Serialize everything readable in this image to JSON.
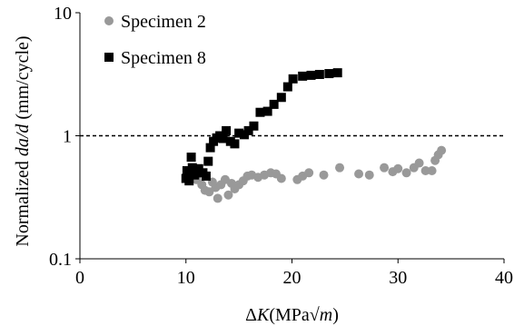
{
  "chart_data": {
    "type": "scatter",
    "xlabel": {
      "prefix": "ΔK",
      "suffix": "(MPa√m)"
    },
    "ylabel": {
      "prefix": "Normalized ",
      "italic": "da/d",
      "suffix": " (mm/cycle)"
    },
    "xlim": [
      0,
      40
    ],
    "ylim": [
      0.1,
      10
    ],
    "y_scale": "log",
    "x_ticks": [
      "0",
      "10",
      "20",
      "30",
      "40"
    ],
    "y_ticks": [
      "0.1",
      "1",
      "10"
    ],
    "reference_line": {
      "y": 1,
      "style": "dashed"
    },
    "legend_position": "top-left",
    "series": [
      {
        "name": "Specimen 2",
        "marker": "circle",
        "color": "#999999",
        "points": [
          [
            10.3,
            0.5
          ],
          [
            10.6,
            0.46
          ],
          [
            11.0,
            0.44
          ],
          [
            11.5,
            0.4
          ],
          [
            11.8,
            0.36
          ],
          [
            12.2,
            0.35
          ],
          [
            12.5,
            0.42
          ],
          [
            12.8,
            0.38
          ],
          [
            13.0,
            0.31
          ],
          [
            13.3,
            0.4
          ],
          [
            13.7,
            0.44
          ],
          [
            14.0,
            0.33
          ],
          [
            14.3,
            0.41
          ],
          [
            14.6,
            0.37
          ],
          [
            15.0,
            0.4
          ],
          [
            15.4,
            0.43
          ],
          [
            15.8,
            0.47
          ],
          [
            16.2,
            0.48
          ],
          [
            16.8,
            0.46
          ],
          [
            17.4,
            0.48
          ],
          [
            18.0,
            0.5
          ],
          [
            18.5,
            0.49
          ],
          [
            19.0,
            0.45
          ],
          [
            20.5,
            0.44
          ],
          [
            21.0,
            0.47
          ],
          [
            21.6,
            0.5
          ],
          [
            23.0,
            0.48
          ],
          [
            24.5,
            0.55
          ],
          [
            26.3,
            0.49
          ],
          [
            27.3,
            0.48
          ],
          [
            28.7,
            0.55
          ],
          [
            29.5,
            0.51
          ],
          [
            30.0,
            0.54
          ],
          [
            30.8,
            0.5
          ],
          [
            31.5,
            0.55
          ],
          [
            32.0,
            0.6
          ],
          [
            32.6,
            0.52
          ],
          [
            33.2,
            0.52
          ],
          [
            33.5,
            0.63
          ],
          [
            33.8,
            0.7
          ],
          [
            34.1,
            0.76
          ]
        ]
      },
      {
        "name": "Specimen 8",
        "marker": "square",
        "color": "#000000",
        "points": [
          [
            10.0,
            0.45
          ],
          [
            10.1,
            0.52
          ],
          [
            10.3,
            0.43
          ],
          [
            10.5,
            0.67
          ],
          [
            10.6,
            0.55
          ],
          [
            10.8,
            0.48
          ],
          [
            11.0,
            0.5
          ],
          [
            11.2,
            0.54
          ],
          [
            11.6,
            0.5
          ],
          [
            11.9,
            0.47
          ],
          [
            12.1,
            0.62
          ],
          [
            12.3,
            0.8
          ],
          [
            12.6,
            0.9
          ],
          [
            12.9,
            0.96
          ],
          [
            13.2,
            1.0
          ],
          [
            13.5,
            0.95
          ],
          [
            13.8,
            1.1
          ],
          [
            14.2,
            0.9
          ],
          [
            14.6,
            0.86
          ],
          [
            15.0,
            1.05
          ],
          [
            15.5,
            1.02
          ],
          [
            15.9,
            1.1
          ],
          [
            16.4,
            1.2
          ],
          [
            17.0,
            1.55
          ],
          [
            17.7,
            1.58
          ],
          [
            18.3,
            1.8
          ],
          [
            19.0,
            2.05
          ],
          [
            19.6,
            2.5
          ],
          [
            20.1,
            2.9
          ],
          [
            21.0,
            3.05
          ],
          [
            21.8,
            3.1
          ],
          [
            22.6,
            3.15
          ],
          [
            23.5,
            3.2
          ],
          [
            24.3,
            3.25
          ]
        ]
      }
    ]
  }
}
